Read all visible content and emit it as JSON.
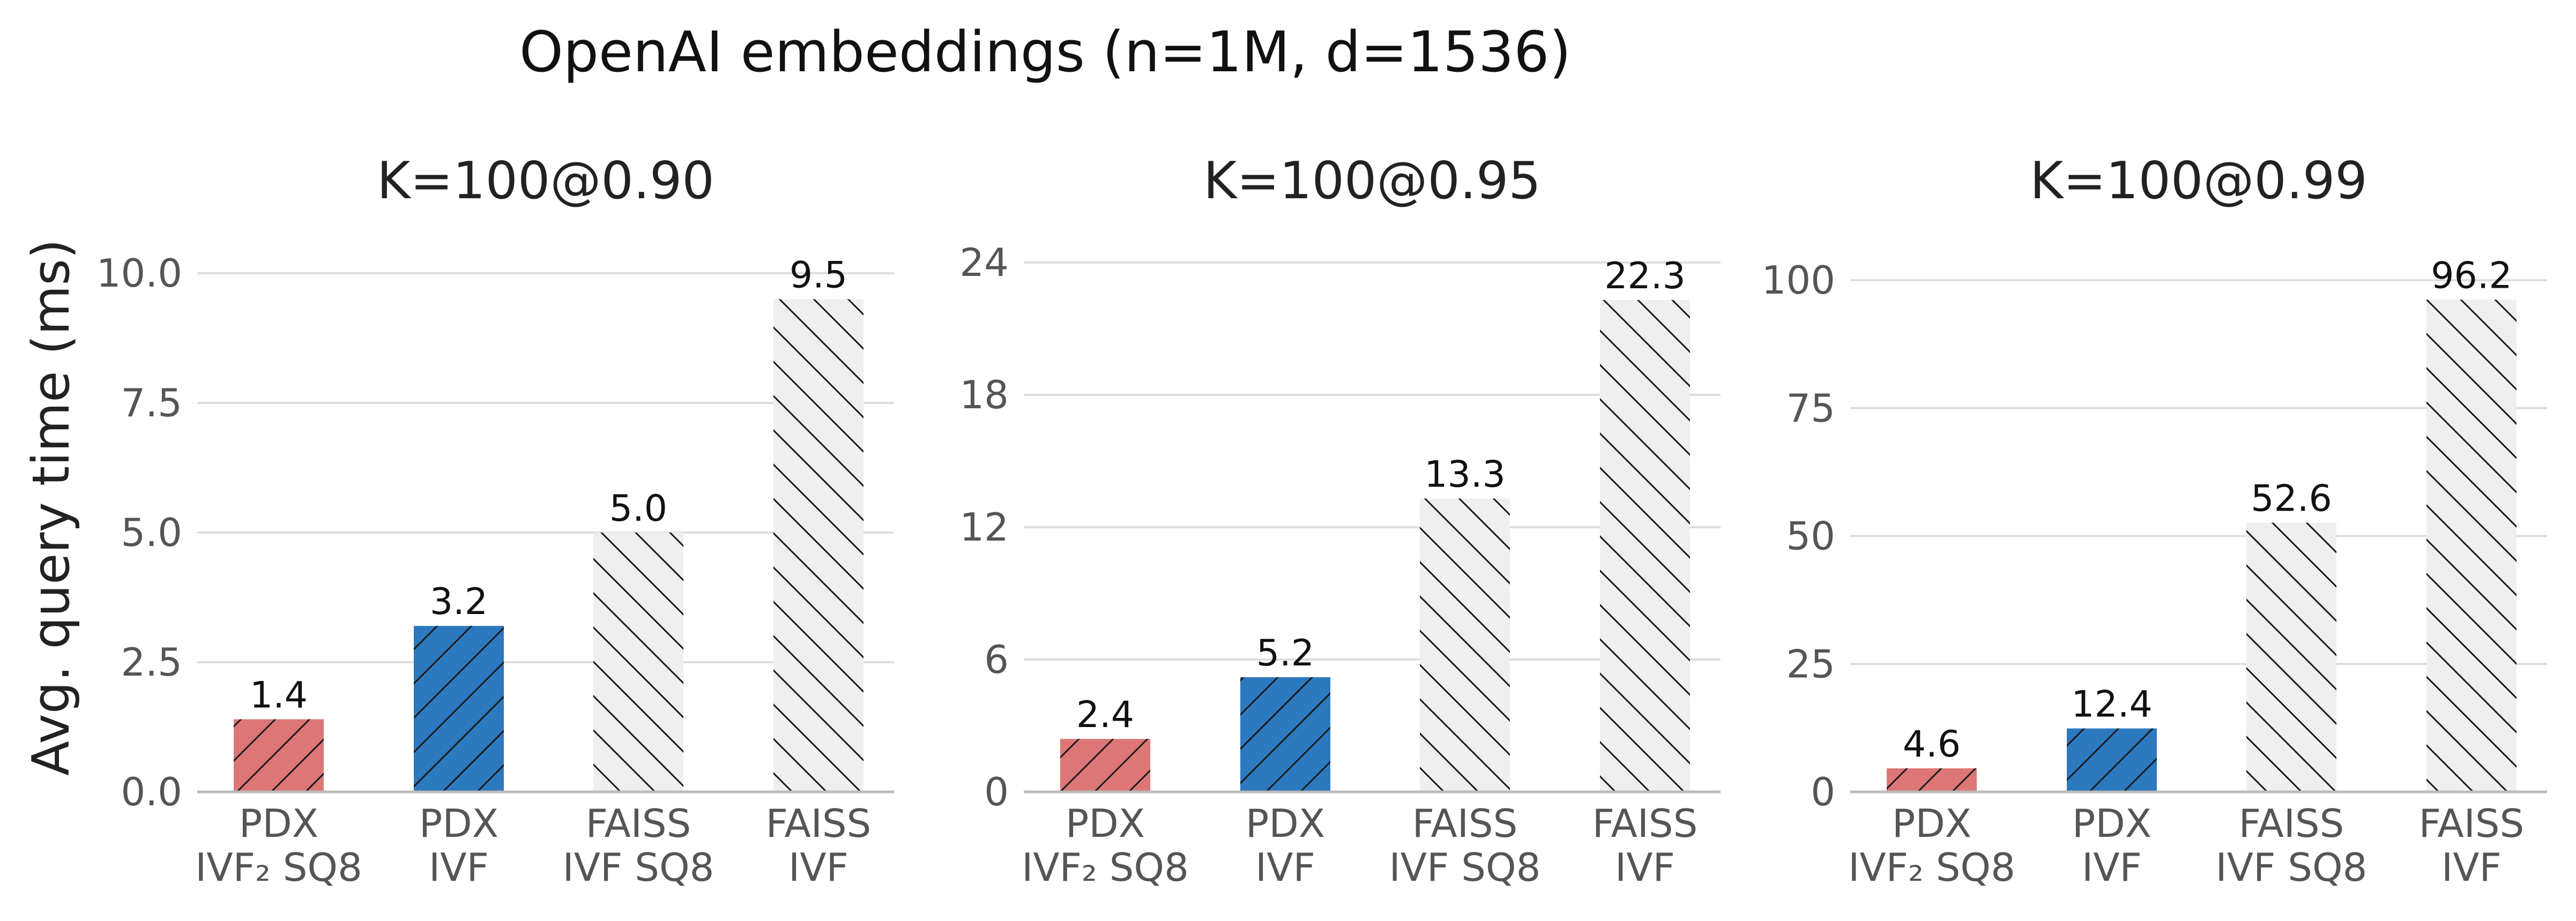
{
  "figure": {
    "suptitle": "OpenAI embeddings (n=1M, d=1536)",
    "ylabel": "Avg. query time (ms)"
  },
  "colors": {
    "pdx_ivf2_sq8": "#dd7777",
    "pdx_ivf": "#2c79bf",
    "faiss": "#efefef",
    "hatch": "#1a1a1a"
  },
  "chart_data": [
    {
      "type": "bar",
      "title": "K=100@0.90",
      "categories": [
        {
          "line1": "PDX",
          "line2": "IVF₂ SQ8"
        },
        {
          "line1": "PDX",
          "line2": "IVF"
        },
        {
          "line1": "FAISS",
          "line2": "IVF SQ8"
        },
        {
          "line1": "FAISS",
          "line2": "IVF"
        }
      ],
      "values": [
        1.4,
        3.2,
        5.0,
        9.5
      ],
      "value_labels": [
        "1.4",
        "3.2",
        "5.0",
        "9.5"
      ],
      "ylim": [
        0,
        10.0
      ],
      "yticks": [
        0,
        2.5,
        5.0,
        7.5,
        10.0
      ],
      "ytick_labels": [
        "0.0",
        "2.5",
        "5.0",
        "7.5",
        "10.0"
      ],
      "grid": true
    },
    {
      "type": "bar",
      "title": "K=100@0.95",
      "categories": [
        {
          "line1": "PDX",
          "line2": "IVF₂ SQ8"
        },
        {
          "line1": "PDX",
          "line2": "IVF"
        },
        {
          "line1": "FAISS",
          "line2": "IVF SQ8"
        },
        {
          "line1": "FAISS",
          "line2": "IVF"
        }
      ],
      "values": [
        2.4,
        5.2,
        13.3,
        22.3
      ],
      "value_labels": [
        "2.4",
        "5.2",
        "13.3",
        "22.3"
      ],
      "ylim": [
        0,
        24
      ],
      "yticks": [
        0,
        6,
        12,
        18,
        24
      ],
      "ytick_labels": [
        "0",
        "6",
        "12",
        "18",
        "24"
      ],
      "grid": true
    },
    {
      "type": "bar",
      "title": "K=100@0.99",
      "categories": [
        {
          "line1": "PDX",
          "line2": "IVF₂ SQ8"
        },
        {
          "line1": "PDX",
          "line2": "IVF"
        },
        {
          "line1": "FAISS",
          "line2": "IVF SQ8"
        },
        {
          "line1": "FAISS",
          "line2": "IVF"
        }
      ],
      "values": [
        4.6,
        12.4,
        52.6,
        96.2
      ],
      "value_labels": [
        "4.6",
        "12.4",
        "52.6",
        "96.2"
      ],
      "ylim": [
        0,
        100
      ],
      "yticks": [
        0,
        25,
        50,
        75,
        100
      ],
      "ytick_labels": [
        "0",
        "25",
        "50",
        "75",
        "100"
      ],
      "grid": true
    }
  ]
}
